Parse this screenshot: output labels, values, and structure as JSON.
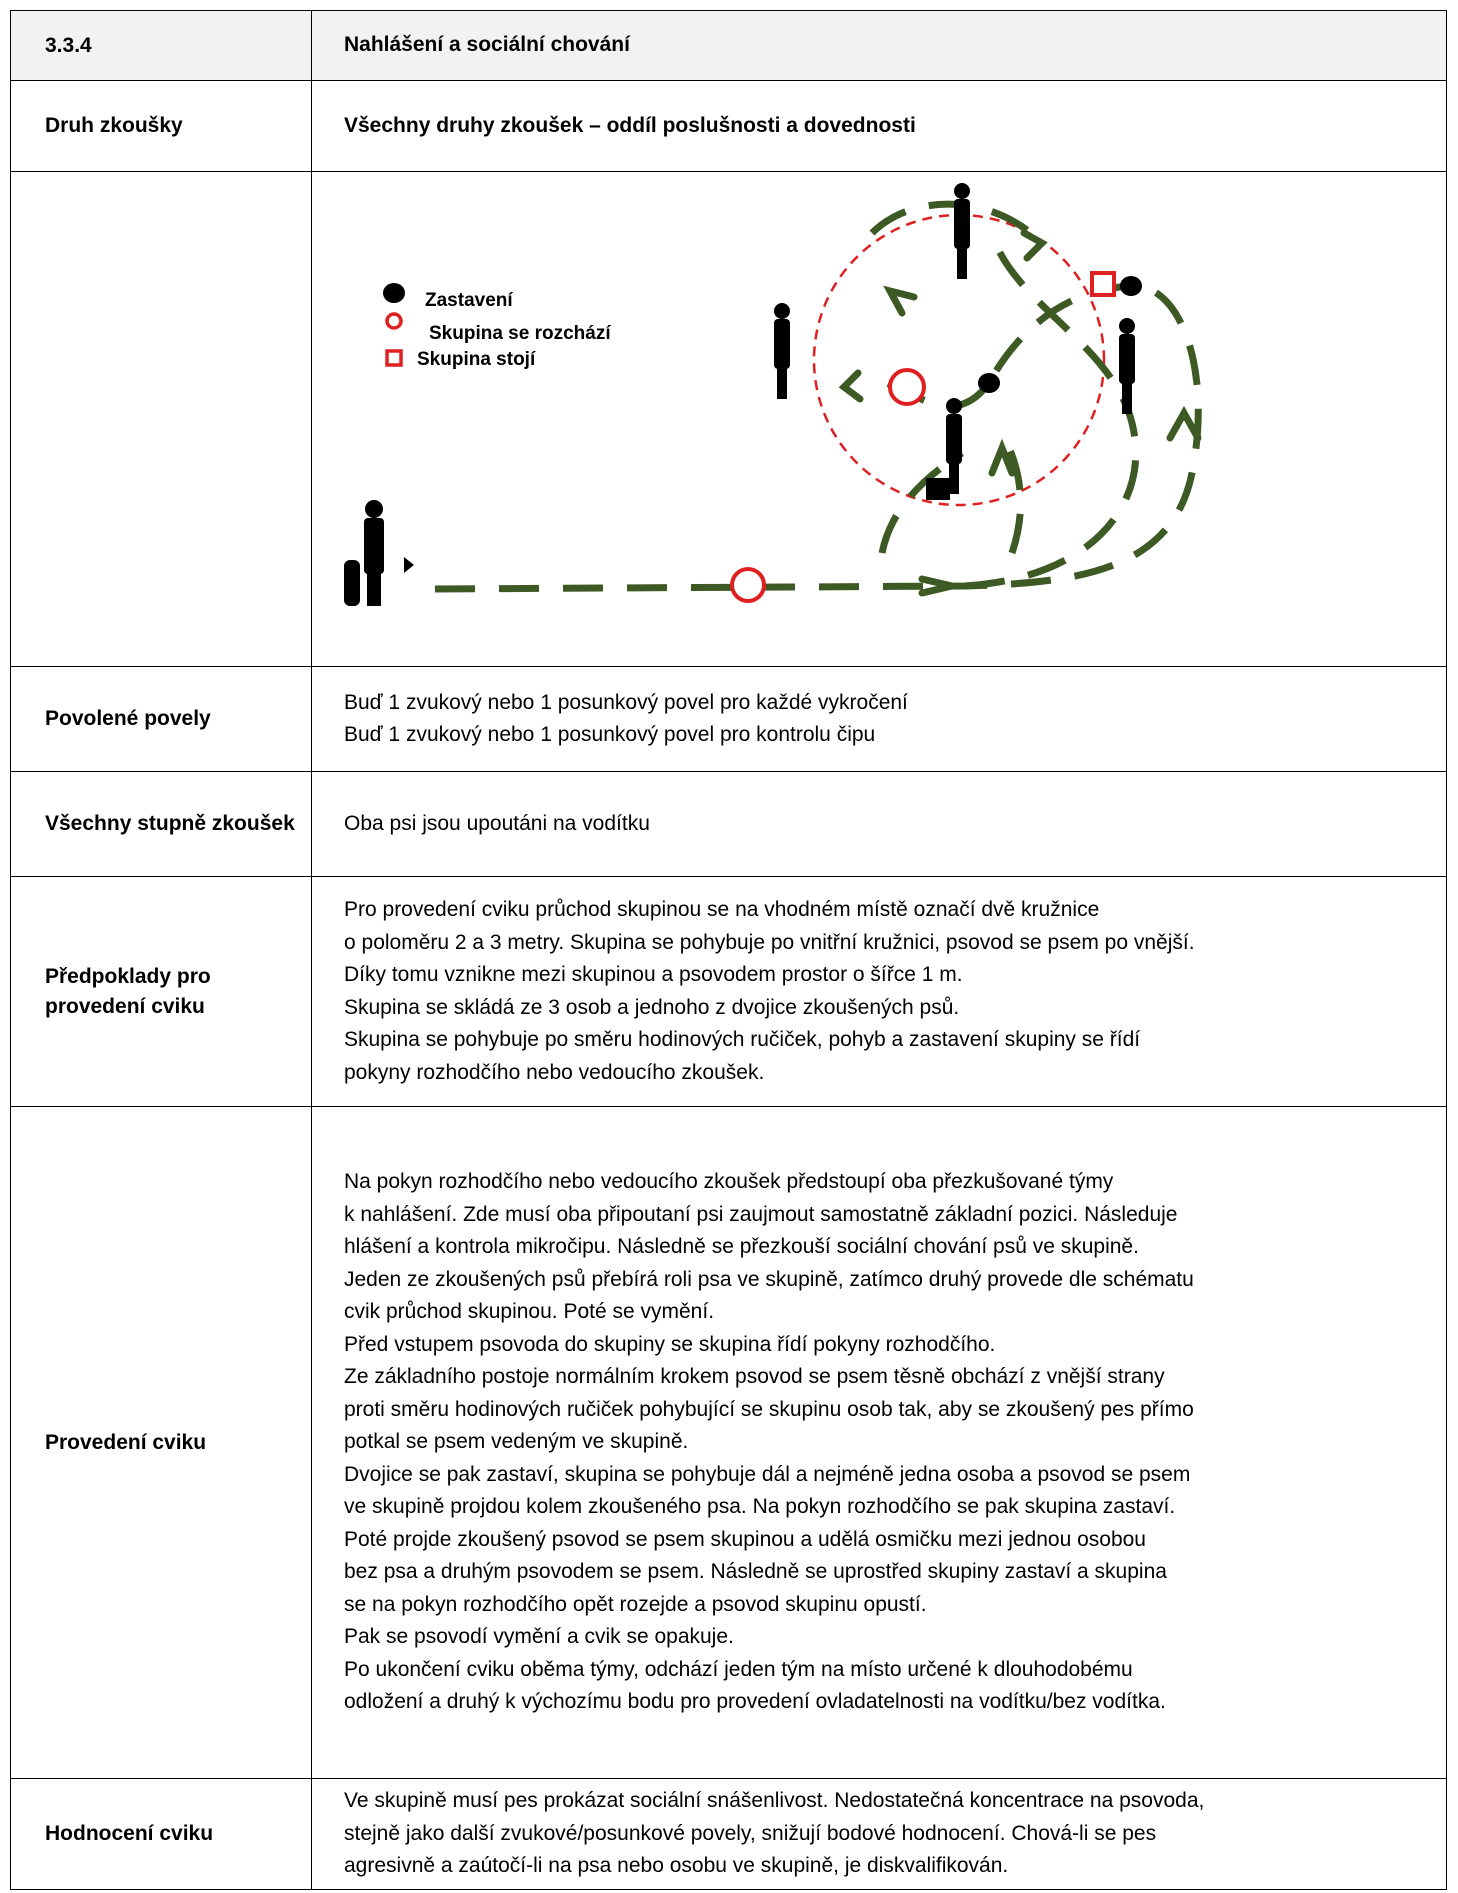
{
  "header": {
    "number": "3.3.4",
    "title": "Nahlášení a sociální chování"
  },
  "test_type": {
    "label": "Druh zkoušky",
    "text": "Všechny druhy zkoušek – oddíl poslušnosti a dovednosti"
  },
  "diagram": {
    "legend": [
      "Zastavení",
      "Skupina se rozchází",
      "Skupina stojí"
    ]
  },
  "rows": [
    {
      "label": "Povolené povely",
      "lines": [
        "Buď 1 zvukový nebo 1 posunkový povel pro každé vykročení",
        "Buď 1 zvukový nebo 1 posunkový povel pro kontrolu čipu"
      ]
    },
    {
      "label": "Všechny stupně zkoušek",
      "lines": [
        "Oba psi jsou upoutáni na vodítku"
      ]
    },
    {
      "label": "Předpoklady pro provedení cviku",
      "lines": [
        "Pro provedení cviku průchod skupinou se na vhodném místě označí dvě kružnice",
        "o poloměru 2 a 3 metry. Skupina se pohybuje po vnitřní kružnici, psovod se psem po vnější.",
        "Díky tomu vznikne mezi skupinou a psovodem prostor o šířce 1 m.",
        "Skupina se skládá ze 3 osob a jednoho z dvojice zkoušených psů.",
        "Skupina se pohybuje po směru hodinových ručiček, pohyb a zastavení skupiny se řídí",
        "pokyny rozhodčího nebo vedoucího zkoušek."
      ]
    },
    {
      "label": "Provedení cviku",
      "lines": [
        "Na pokyn rozhodčího nebo vedoucího zkoušek předstoupí oba přezkušované týmy",
        "k nahlášení. Zde musí oba připoutaní psi zaujmout samostatně základní pozici. Následuje",
        "hlášení a kontrola mikročipu. Následně se přezkouší sociální chování psů ve skupině.",
        "Jeden ze zkoušených psů přebírá roli psa ve skupině, zatímco druhý provede dle schématu",
        "cvik průchod skupinou. Poté se vymění.",
        "Před vstupem psovoda do skupiny se skupina řídí pokyny rozhodčího.",
        "Ze základního postoje normálním krokem psovod se psem těsně obchází z vnější strany",
        "proti směru hodinových ručiček pohybující se skupinu osob tak, aby se zkoušený pes přímo",
        "potkal se psem vedeným ve skupině.",
        "Dvojice se pak zastaví, skupina se pohybuje dál a nejméně jedna osoba a psovod se psem",
        "ve skupině projdou kolem zkoušeného psa. Na pokyn rozhodčího se pak skupina zastaví.",
        "Poté projde zkoušený psovod se psem skupinou a udělá osmičku mezi jednou osobou",
        "bez psa a druhým psovodem se psem. Následně se uprostřed skupiny zastaví a skupina",
        "se na pokyn rozhodčího opět rozejde a psovod skupinu opustí.",
        "Pak se psovodí vymění a cvik se opakuje.",
        "Po ukončení cviku oběma týmy, odchází jeden tým na místo určené k dlouhodobému",
        "odložení a druhý k výchozímu bodu pro provedení ovladatelnosti na vodítku/bez vodítka."
      ]
    },
    {
      "label": "Hodnocení cviku",
      "lines": [
        "Ve skupině musí pes prokázat sociální snášenlivost. Nedostatečná koncentrace na psovoda,",
        "stejně jako další zvukové/posunkové povely, snižují bodové hodnocení. Chová-li se pes",
        "agresivně a zaútočí-li na psa nebo osobu ve skupině, je diskvalifikován."
      ]
    }
  ]
}
